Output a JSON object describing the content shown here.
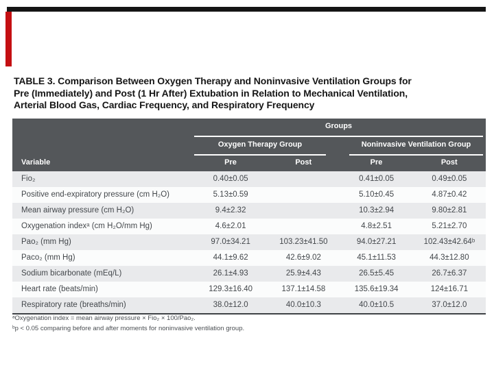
{
  "colors": {
    "top_bar": "#151515",
    "accent_red": "#c40f12",
    "header_bg": "#54575a",
    "row_shaded": "#e9eaec",
    "body_text": "#43474b"
  },
  "title": {
    "lines": [
      "TABLE 3. Comparison Between Oxygen Therapy and Noninvasive Ventilation Groups for",
      "Pre (Immediately) and Post (1 Hr After) Extubation in Relation to Mechanical Ventilation,",
      "Arterial Blood Gas, Cardiac Frequency, and Respiratory Frequency"
    ]
  },
  "table": {
    "header": {
      "groups_label": "Groups",
      "group1": "Oxygen Therapy Group",
      "group2": "Noninvasive Ventilation Group",
      "variable_label": "Variable",
      "subcols": [
        "Pre",
        "Post",
        "Pre",
        "Post"
      ]
    },
    "rows": [
      {
        "label": "Fio₂",
        "cells": [
          "0.40±0.05",
          "",
          "0.41±0.05",
          "0.49±0.05"
        ]
      },
      {
        "label": "Positive end-expiratory pressure (cm H₂O)",
        "cells": [
          "5.13±0.59",
          "",
          "5.10±0.45",
          "4.87±0.42"
        ]
      },
      {
        "label": "Mean airway pressure (cm H₂O)",
        "cells": [
          "9.4±2.32",
          "",
          "10.3±2.94",
          "9.80±2.81"
        ]
      },
      {
        "label": "Oxygenation indexᵃ (cm H₂O/mm Hg)",
        "cells": [
          "4.6±2.01",
          "",
          "4.8±2.51",
          "5.21±2.70"
        ]
      },
      {
        "label": "Pao₂ (mm Hg)",
        "cells": [
          "97.0±34.21",
          "103.23±41.50",
          "94.0±27.21",
          "102.43±42.64ᵇ"
        ]
      },
      {
        "label": "Paco₂ (mm Hg)",
        "cells": [
          "44.1±9.62",
          "42.6±9.02",
          "45.1±11.53",
          "44.3±12.80"
        ]
      },
      {
        "label": "Sodium bicarbonate (mEq/L)",
        "cells": [
          "26.1±4.93",
          "25.9±4.43",
          "26.5±5.45",
          "26.7±6.37"
        ]
      },
      {
        "label": "Heart rate (beats/min)",
        "cells": [
          "129.3±16.40",
          "137.1±14.58",
          "135.6±19.34",
          "124±16.71"
        ]
      },
      {
        "label": "Respiratory rate (breaths/min)",
        "cells": [
          "38.0±12.0",
          "40.0±10.3",
          "40.0±10.5",
          "37.0±12.0"
        ]
      }
    ],
    "footnotes": [
      "ᵃOxygenation index = mean airway pressure × Fio₂ × 100/Pao₂.",
      "ᵇp < 0.05 comparing before and after moments for noninvasive ventilation group."
    ]
  }
}
